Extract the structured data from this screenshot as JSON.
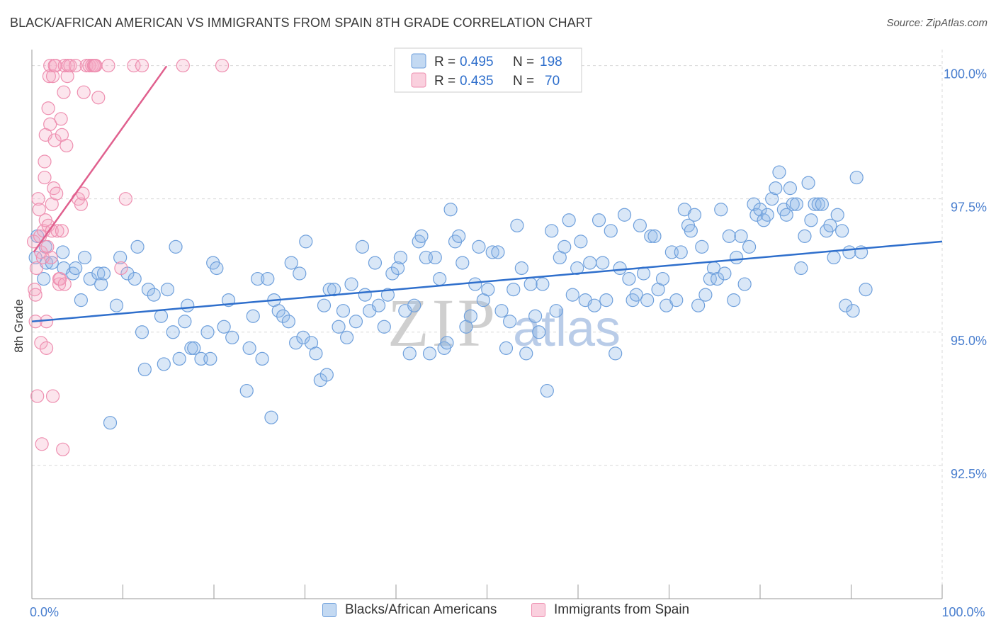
{
  "title": "BLACK/AFRICAN AMERICAN VS IMMIGRANTS FROM SPAIN 8TH GRADE CORRELATION CHART",
  "source": "Source: ZipAtlas.com",
  "watermark": {
    "zip": "ZIP",
    "atlas": "atlas"
  },
  "colors": {
    "blue": "#6fa0dc",
    "blue_fill": "rgba(145,185,232,0.35)",
    "blue_line": "#2f6fcc",
    "pink": "#ee8fb0",
    "pink_fill": "rgba(245,170,195,0.30)",
    "pink_line": "#e0608e",
    "axis_text": "#4a7fcf",
    "grid": "#d8d8d8"
  },
  "chart_data": {
    "type": "scatter",
    "title": "BLACK/AFRICAN AMERICAN VS IMMIGRANTS FROM SPAIN 8TH GRADE CORRELATION CHART",
    "xlabel": "",
    "ylabel": "8th Grade",
    "xlim": [
      0,
      100
    ],
    "ylim": [
      90.0,
      100.3
    ],
    "x_tick_labels": [
      {
        "value": 0,
        "label": "0.0%"
      },
      {
        "value": 100,
        "label": "100.0%"
      }
    ],
    "y_ticks": [
      {
        "value": 92.5,
        "label": "92.5%"
      },
      {
        "value": 95.0,
        "label": "95.0%"
      },
      {
        "value": 97.5,
        "label": "97.5%"
      },
      {
        "value": 100.0,
        "label": "100.0%"
      }
    ],
    "grid": true,
    "legend_position": "top-center",
    "legend": [
      {
        "r_label": "R =",
        "r_value": "0.495",
        "n_label": "N =",
        "n_value": "198"
      },
      {
        "r_label": "R =",
        "r_value": "0.435",
        "n_label": "N =",
        "n_value": "70"
      }
    ],
    "series": [
      {
        "name": "Blacks/African Americans",
        "trend": {
          "x": [
            0,
            100
          ],
          "y": [
            95.2,
            96.7
          ]
        },
        "points": [
          [
            0.4,
            96.4
          ],
          [
            0.6,
            96.8
          ],
          [
            1.3,
            96.0
          ],
          [
            1.5,
            96.6
          ],
          [
            1.6,
            96.3
          ],
          [
            2.2,
            96.3
          ],
          [
            3.4,
            96.5
          ],
          [
            3.5,
            96.2
          ],
          [
            4.5,
            96.1
          ],
          [
            4.8,
            96.2
          ],
          [
            5.4,
            95.6
          ],
          [
            5.8,
            96.4
          ],
          [
            6.4,
            96.0
          ],
          [
            7.3,
            96.1
          ],
          [
            7.6,
            95.9
          ],
          [
            7.9,
            96.1
          ],
          [
            8.6,
            93.3
          ],
          [
            9.3,
            95.5
          ],
          [
            9.7,
            96.4
          ],
          [
            10.5,
            96.1
          ],
          [
            11.3,
            96.0
          ],
          [
            11.6,
            96.6
          ],
          [
            12.1,
            95.0
          ],
          [
            12.4,
            94.3
          ],
          [
            12.8,
            95.8
          ],
          [
            13.4,
            95.7
          ],
          [
            14.2,
            95.3
          ],
          [
            14.5,
            94.4
          ],
          [
            14.9,
            95.8
          ],
          [
            15.5,
            95.0
          ],
          [
            15.8,
            96.6
          ],
          [
            16.2,
            94.5
          ],
          [
            16.8,
            95.2
          ],
          [
            17.1,
            95.5
          ],
          [
            17.5,
            94.7
          ],
          [
            17.8,
            94.7
          ],
          [
            18.6,
            94.5
          ],
          [
            19.3,
            95.0
          ],
          [
            19.6,
            94.5
          ],
          [
            19.9,
            96.3
          ],
          [
            20.3,
            96.2
          ],
          [
            21.1,
            95.1
          ],
          [
            21.6,
            95.6
          ],
          [
            22.0,
            94.9
          ],
          [
            23.6,
            93.9
          ],
          [
            23.9,
            94.7
          ],
          [
            24.3,
            95.3
          ],
          [
            24.8,
            96.0
          ],
          [
            25.3,
            94.5
          ],
          [
            25.9,
            96.0
          ],
          [
            26.3,
            93.4
          ],
          [
            26.6,
            95.6
          ],
          [
            27.1,
            95.4
          ],
          [
            27.6,
            95.3
          ],
          [
            28.2,
            95.2
          ],
          [
            28.5,
            96.3
          ],
          [
            29.0,
            94.8
          ],
          [
            29.4,
            96.1
          ],
          [
            29.8,
            94.9
          ],
          [
            30.1,
            96.7
          ],
          [
            30.7,
            94.8
          ],
          [
            31.2,
            94.6
          ],
          [
            31.7,
            94.1
          ],
          [
            32.1,
            95.5
          ],
          [
            32.4,
            94.2
          ],
          [
            32.7,
            95.8
          ],
          [
            33.2,
            95.8
          ],
          [
            33.7,
            95.1
          ],
          [
            34.2,
            95.4
          ],
          [
            34.6,
            94.9
          ],
          [
            35.1,
            95.9
          ],
          [
            35.6,
            95.2
          ],
          [
            36.3,
            96.6
          ],
          [
            36.6,
            95.7
          ],
          [
            37.1,
            95.4
          ],
          [
            37.7,
            96.3
          ],
          [
            38.1,
            95.5
          ],
          [
            38.7,
            95.1
          ],
          [
            39.1,
            95.7
          ],
          [
            39.6,
            96.1
          ],
          [
            40.2,
            96.2
          ],
          [
            40.5,
            96.4
          ],
          [
            41.0,
            95.4
          ],
          [
            41.5,
            94.6
          ],
          [
            42.0,
            95.5
          ],
          [
            42.5,
            96.7
          ],
          [
            42.8,
            96.8
          ],
          [
            43.3,
            96.4
          ],
          [
            43.7,
            94.6
          ],
          [
            44.3,
            96.4
          ],
          [
            44.8,
            96.0
          ],
          [
            45.3,
            94.7
          ],
          [
            45.6,
            94.8
          ],
          [
            46.0,
            97.3
          ],
          [
            46.5,
            96.7
          ],
          [
            46.9,
            96.8
          ],
          [
            47.3,
            96.3
          ],
          [
            47.7,
            95.1
          ],
          [
            48.2,
            95.3
          ],
          [
            48.7,
            95.9
          ],
          [
            49.1,
            96.6
          ],
          [
            49.6,
            95.6
          ],
          [
            50.1,
            95.8
          ],
          [
            50.6,
            96.5
          ],
          [
            51.2,
            96.5
          ],
          [
            51.6,
            95.4
          ],
          [
            52.1,
            94.7
          ],
          [
            52.5,
            95.2
          ],
          [
            52.9,
            95.8
          ],
          [
            53.3,
            97.0
          ],
          [
            53.8,
            96.2
          ],
          [
            54.3,
            94.6
          ],
          [
            54.8,
            95.9
          ],
          [
            55.3,
            95.3
          ],
          [
            55.7,
            95.0
          ],
          [
            56.1,
            95.9
          ],
          [
            56.6,
            93.9
          ],
          [
            57.1,
            96.9
          ],
          [
            57.6,
            95.4
          ],
          [
            58.0,
            96.4
          ],
          [
            58.5,
            96.6
          ],
          [
            59.0,
            97.1
          ],
          [
            59.4,
            95.7
          ],
          [
            59.9,
            96.2
          ],
          [
            60.3,
            96.7
          ],
          [
            60.8,
            95.6
          ],
          [
            61.3,
            96.3
          ],
          [
            61.8,
            95.5
          ],
          [
            62.3,
            97.1
          ],
          [
            62.7,
            96.3
          ],
          [
            63.1,
            95.6
          ],
          [
            63.6,
            96.9
          ],
          [
            64.1,
            94.6
          ],
          [
            64.6,
            96.2
          ],
          [
            65.1,
            97.2
          ],
          [
            65.6,
            96.0
          ],
          [
            66.0,
            95.6
          ],
          [
            66.4,
            95.7
          ],
          [
            66.8,
            97.0
          ],
          [
            67.2,
            96.1
          ],
          [
            67.6,
            95.6
          ],
          [
            68.0,
            96.8
          ],
          [
            68.4,
            96.8
          ],
          [
            68.8,
            95.8
          ],
          [
            69.3,
            96.0
          ],
          [
            69.7,
            95.5
          ],
          [
            70.3,
            96.5
          ],
          [
            70.8,
            95.6
          ],
          [
            71.3,
            96.5
          ],
          [
            71.7,
            97.3
          ],
          [
            72.1,
            97.0
          ],
          [
            72.4,
            96.9
          ],
          [
            72.8,
            97.2
          ],
          [
            73.2,
            95.5
          ],
          [
            73.6,
            96.6
          ],
          [
            74.0,
            95.7
          ],
          [
            74.5,
            96.0
          ],
          [
            74.9,
            96.2
          ],
          [
            75.3,
            96.0
          ],
          [
            75.7,
            97.3
          ],
          [
            76.1,
            96.1
          ],
          [
            76.6,
            96.8
          ],
          [
            77.1,
            95.6
          ],
          [
            77.4,
            96.4
          ],
          [
            77.9,
            96.8
          ],
          [
            78.3,
            95.9
          ],
          [
            78.8,
            96.6
          ],
          [
            79.3,
            97.4
          ],
          [
            79.6,
            97.2
          ],
          [
            80.0,
            97.3
          ],
          [
            80.4,
            97.1
          ],
          [
            80.8,
            97.2
          ],
          [
            81.3,
            97.5
          ],
          [
            81.7,
            97.7
          ],
          [
            82.1,
            98.0
          ],
          [
            82.6,
            97.3
          ],
          [
            82.9,
            97.2
          ],
          [
            83.3,
            97.7
          ],
          [
            83.6,
            97.4
          ],
          [
            84.0,
            97.4
          ],
          [
            84.5,
            96.2
          ],
          [
            84.9,
            96.8
          ],
          [
            85.3,
            97.8
          ],
          [
            85.6,
            97.1
          ],
          [
            86.0,
            97.4
          ],
          [
            86.4,
            97.4
          ],
          [
            86.8,
            97.4
          ],
          [
            87.3,
            96.9
          ],
          [
            87.7,
            97.0
          ],
          [
            88.1,
            96.4
          ],
          [
            88.5,
            97.2
          ],
          [
            89.0,
            96.9
          ],
          [
            89.4,
            95.5
          ],
          [
            89.8,
            96.5
          ],
          [
            90.2,
            95.4
          ],
          [
            90.6,
            97.9
          ],
          [
            91.1,
            96.5
          ],
          [
            91.6,
            95.8
          ]
        ]
      },
      {
        "name": "Immigrants from Spain",
        "trend": {
          "x": [
            0.2,
            14.8
          ],
          "y": [
            96.5,
            99.99
          ]
        },
        "points": [
          [
            0.2,
            96.7
          ],
          [
            0.3,
            95.8
          ],
          [
            0.4,
            95.7
          ],
          [
            0.4,
            95.2
          ],
          [
            0.5,
            96.2
          ],
          [
            0.6,
            93.8
          ],
          [
            0.7,
            97.5
          ],
          [
            0.8,
            97.3
          ],
          [
            0.9,
            96.8
          ],
          [
            1.0,
            96.5
          ],
          [
            1.0,
            94.8
          ],
          [
            1.1,
            92.9
          ],
          [
            1.2,
            96.4
          ],
          [
            1.3,
            96.9
          ],
          [
            1.4,
            97.9
          ],
          [
            1.4,
            98.2
          ],
          [
            1.5,
            98.7
          ],
          [
            1.5,
            97.1
          ],
          [
            1.6,
            95.2
          ],
          [
            1.6,
            94.7
          ],
          [
            1.7,
            96.6
          ],
          [
            1.8,
            97.0
          ],
          [
            1.8,
            99.2
          ],
          [
            1.9,
            99.8
          ],
          [
            2.0,
            100.0
          ],
          [
            2.0,
            98.9
          ],
          [
            2.1,
            96.4
          ],
          [
            2.2,
            96.9
          ],
          [
            2.2,
            97.4
          ],
          [
            2.3,
            93.8
          ],
          [
            2.3,
            99.8
          ],
          [
            2.4,
            97.7
          ],
          [
            2.5,
            98.6
          ],
          [
            2.5,
            100.0
          ],
          [
            2.6,
            100.0
          ],
          [
            2.7,
            97.6
          ],
          [
            2.8,
            96.9
          ],
          [
            3.0,
            96.0
          ],
          [
            3.0,
            95.9
          ],
          [
            3.1,
            96.0
          ],
          [
            3.2,
            99.0
          ],
          [
            3.3,
            98.7
          ],
          [
            3.3,
            96.9
          ],
          [
            3.4,
            92.8
          ],
          [
            3.5,
            99.5
          ],
          [
            3.6,
            100.0
          ],
          [
            3.6,
            95.9
          ],
          [
            3.8,
            98.5
          ],
          [
            3.9,
            99.8
          ],
          [
            4.0,
            100.0
          ],
          [
            4.2,
            100.0
          ],
          [
            4.8,
            100.0
          ],
          [
            5.1,
            97.5
          ],
          [
            5.4,
            97.4
          ],
          [
            5.6,
            97.6
          ],
          [
            5.7,
            99.5
          ],
          [
            6.0,
            100.0
          ],
          [
            6.3,
            100.0
          ],
          [
            6.6,
            100.0
          ],
          [
            6.8,
            100.0
          ],
          [
            6.9,
            100.0
          ],
          [
            7.0,
            100.0
          ],
          [
            7.3,
            99.4
          ],
          [
            8.4,
            100.0
          ],
          [
            9.8,
            96.2
          ],
          [
            10.3,
            97.5
          ],
          [
            11.2,
            100.0
          ],
          [
            12.1,
            100.0
          ],
          [
            16.6,
            100.0
          ],
          [
            20.9,
            100.0
          ]
        ]
      }
    ]
  }
}
